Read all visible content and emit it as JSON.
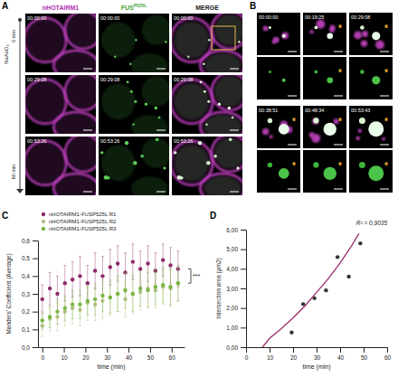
{
  "figure": {
    "panels": {
      "A": {
        "letter": "A",
        "channels": [
          {
            "text": "nHOTAIRM1",
            "color": "#b02fb0"
          },
          {
            "text": "FUS",
            "sup": "P525L",
            "color": "#3fa535"
          },
          {
            "text": "MERGE",
            "color": "#222222"
          }
        ],
        "treatment": "NaAsO₂",
        "start": "0 min",
        "end": "60 min",
        "timestamps": [
          "00:00:00",
          "00:29:08",
          "00:53:26"
        ]
      },
      "B": {
        "letter": "B",
        "highlight": "*",
        "timestamps": [
          "00:00:00",
          "00:19:25",
          "00:29:08",
          "00:38:51",
          "00:48:34",
          "00:53:43"
        ]
      }
    },
    "chart_letters": [
      "C",
      "D"
    ]
  },
  "chart_data": [
    {
      "type": "scatter",
      "x_label": "time (min)",
      "y_label": "Manders' Coefficient (Average)",
      "annotation": "***",
      "legend": "top-left",
      "grid": false,
      "x": [
        0,
        3.5,
        7,
        10.5,
        14,
        17.5,
        21,
        24.5,
        28,
        31.5,
        35,
        38.5,
        42,
        45.5,
        49,
        52.5,
        56,
        59.5,
        63
      ],
      "xlim": [
        -2,
        66
      ],
      "xticks": [
        0,
        10,
        20,
        30,
        40,
        50,
        60
      ],
      "ylim": [
        0,
        0.6
      ],
      "yticks": [
        {
          "value": 0,
          "label": "0,0"
        },
        {
          "value": 0.1,
          "label": "0,1"
        },
        {
          "value": 0.2,
          "label": "0,2"
        },
        {
          "value": 0.3,
          "label": "0,3"
        },
        {
          "value": 0.4,
          "label": "0,4"
        },
        {
          "value": 0.5,
          "label": "0,5"
        },
        {
          "value": 0.6,
          "label": "0,6"
        }
      ],
      "series": [
        {
          "name": "nHOTAIRM1-FUSP525L R1",
          "color": "#8e2a6b",
          "marker": "circle",
          "values": [
            0.27,
            0.33,
            0.3,
            0.36,
            0.38,
            0.4,
            0.36,
            0.43,
            0.4,
            0.45,
            0.47,
            0.42,
            0.48,
            0.44,
            0.47,
            0.43,
            0.49,
            0.46,
            0.44
          ],
          "errors": [
            0.08,
            0.09,
            0.1,
            0.1,
            0.1,
            0.11,
            0.1,
            0.1,
            0.11,
            0.1,
            0.1,
            0.11,
            0.1,
            0.1,
            0.1,
            0.1,
            0.09,
            0.1,
            0.1
          ]
        },
        {
          "name": "nHOTAIRM1-FUSP525L R2",
          "color": "#b5c28c",
          "marker": "circle",
          "values": [
            0.12,
            0.16,
            0.17,
            0.2,
            0.22,
            0.21,
            0.25,
            0.24,
            0.26,
            0.28,
            0.3,
            0.27,
            0.3,
            0.31,
            0.33,
            0.32,
            0.34,
            0.33,
            0.36
          ],
          "errors": [
            0.06,
            0.07,
            0.08,
            0.08,
            0.09,
            0.09,
            0.1,
            0.09,
            0.1,
            0.1,
            0.1,
            0.1,
            0.11,
            0.1,
            0.1,
            0.1,
            0.1,
            0.1,
            0.1
          ]
        },
        {
          "name": "nHOTAIRM1-FUSP525L R3",
          "color": "#7ab643",
          "marker": "circle",
          "values": [
            0.15,
            0.17,
            0.2,
            0.22,
            0.24,
            0.24,
            0.26,
            0.27,
            0.29,
            0.28,
            0.3,
            0.32,
            0.3,
            0.33,
            0.32,
            0.34,
            0.35,
            0.34,
            0.36
          ],
          "errors": [
            0.05,
            0.06,
            0.07,
            0.07,
            0.08,
            0.08,
            0.08,
            0.09,
            0.09,
            0.09,
            0.1,
            0.1,
            0.1,
            0.1,
            0.1,
            0.1,
            0.1,
            0.1,
            0.1
          ]
        }
      ]
    },
    {
      "type": "scatter",
      "x_label": "time (min)",
      "y_label": "Intersection area (µm2)",
      "annotation": "R² = 0,9035",
      "grid": false,
      "xlim": [
        0,
        60
      ],
      "xticks": [
        0,
        10,
        20,
        30,
        40,
        50,
        60
      ],
      "ylim": [
        0,
        6
      ],
      "yticks": [
        {
          "value": 0,
          "label": "0,00"
        },
        {
          "value": 1,
          "label": "1,00"
        },
        {
          "value": 2,
          "label": "2,00"
        },
        {
          "value": 3,
          "label": "3,00"
        },
        {
          "value": 4,
          "label": "4,00"
        },
        {
          "value": 5,
          "label": "5,00"
        },
        {
          "value": 6,
          "label": "6,00"
        }
      ],
      "series": [
        {
          "type": "scatter",
          "color": "#333333",
          "marker": "circle",
          "x": [
            19.4,
            24.3,
            29.1,
            34,
            38.9,
            43.7,
            48.6
          ],
          "values": [
            0.75,
            2.2,
            2.5,
            2.9,
            4.6,
            3.6,
            5.3
          ]
        },
        {
          "type": "line",
          "color": "#9b2d6e",
          "marker": "none",
          "line_style": "solid",
          "x": [
            7,
            10,
            15,
            20,
            25,
            30,
            35,
            40,
            45,
            48
          ],
          "values": [
            0,
            0.45,
            0.95,
            1.5,
            2.1,
            2.8,
            3.5,
            4.3,
            5.2,
            5.8
          ]
        }
      ]
    }
  ]
}
